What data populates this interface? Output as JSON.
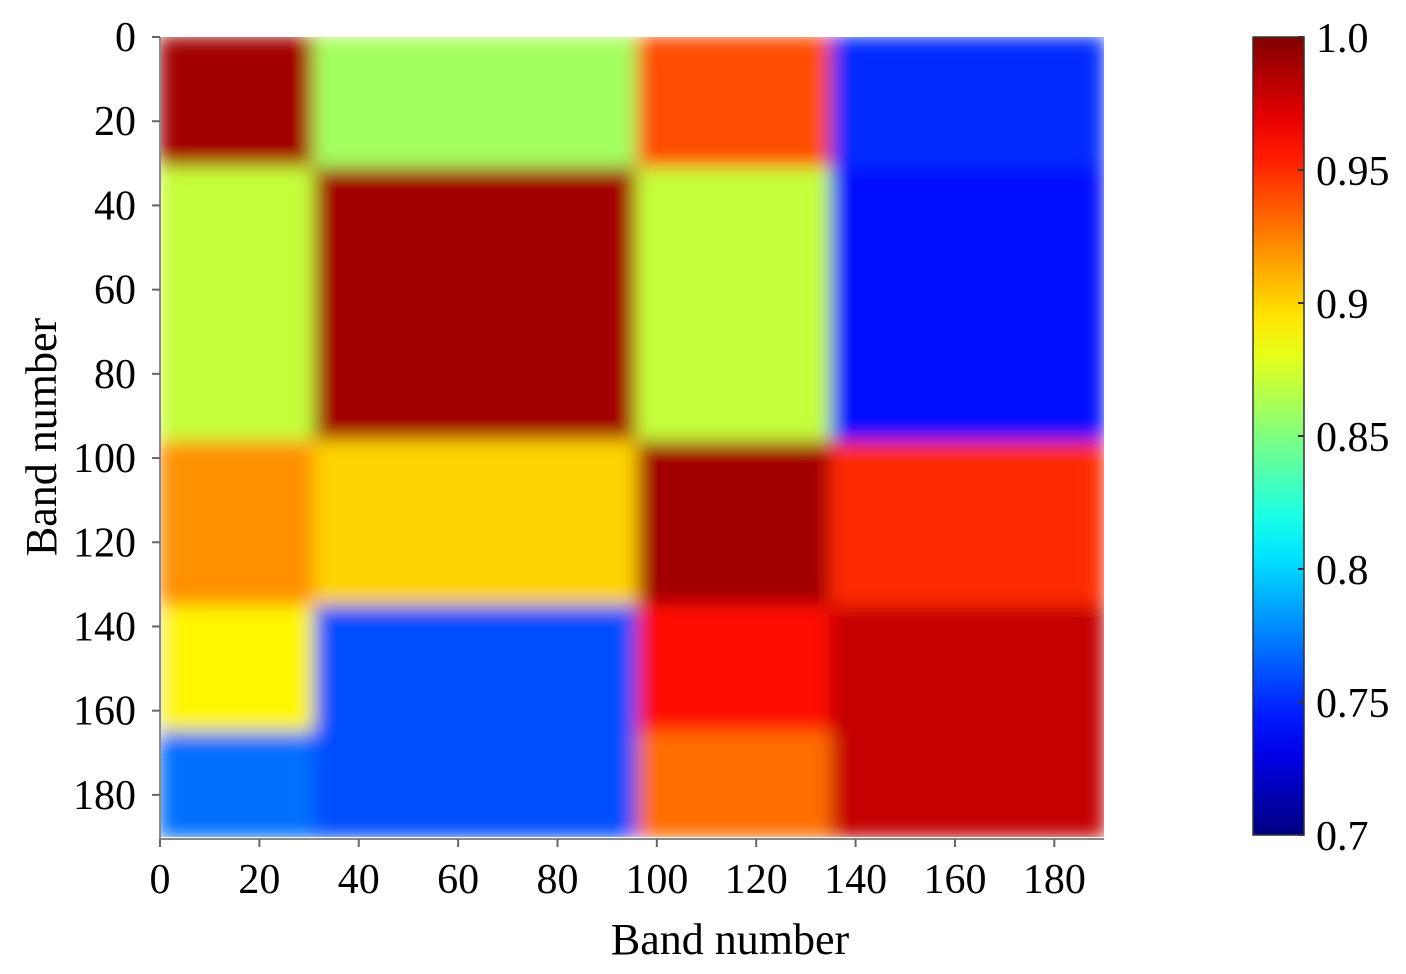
{
  "chart_data": {
    "type": "heatmap",
    "title": "",
    "xlabel": "Band number",
    "ylabel": "Band number",
    "xlim": [
      0,
      190
    ],
    "ylim": [
      0,
      190
    ],
    "x_ticks": [
      0,
      20,
      40,
      60,
      80,
      100,
      120,
      140,
      160,
      180
    ],
    "y_ticks": [
      0,
      20,
      40,
      60,
      80,
      100,
      120,
      140,
      160,
      180
    ],
    "y_axis_direction": "top-to-bottom",
    "colorbar": {
      "range": [
        0.7,
        1.0
      ],
      "ticks": [
        0.7,
        0.75,
        0.8,
        0.85,
        0.9,
        0.95,
        1.0
      ],
      "tick_labels": [
        "0.7",
        "0.75",
        "0.8",
        "0.85",
        "0.9",
        "0.95",
        "1.0"
      ],
      "colormap": "jet",
      "placement": "right"
    },
    "band_groups": [
      {
        "from": 0,
        "to": 31
      },
      {
        "from": 31,
        "to": 96
      },
      {
        "from": 96,
        "to": 135
      },
      {
        "from": 135,
        "to": 190
      }
    ],
    "block_correlation_matrix": [
      [
        0.99,
        0.89,
        0.96,
        0.75
      ],
      [
        0.89,
        0.99,
        0.89,
        0.75
      ],
      [
        0.96,
        0.89,
        0.99,
        0.96
      ],
      [
        0.75,
        0.75,
        0.96,
        0.98
      ]
    ],
    "sub_blocks": [
      {
        "rows": [
          0,
          31
        ],
        "cols": [
          31,
          96
        ],
        "value": 0.86
      },
      {
        "rows": [
          31,
          96
        ],
        "cols": [
          0,
          31
        ],
        "value": 0.87
      },
      {
        "rows": [
          0,
          31
        ],
        "cols": [
          135,
          190
        ],
        "value": 0.75
      },
      {
        "rows": [
          31,
          96
        ],
        "cols": [
          135,
          190
        ],
        "value": 0.74
      },
      {
        "rows": [
          135,
          165
        ],
        "cols": [
          0,
          31
        ],
        "value": 0.89
      },
      {
        "rows": [
          165,
          190
        ],
        "cols": [
          0,
          31
        ],
        "value": 0.77
      },
      {
        "rows": [
          135,
          190
        ],
        "cols": [
          31,
          96
        ],
        "value": 0.76
      },
      {
        "rows": [
          96,
          135
        ],
        "cols": [
          0,
          31
        ],
        "value": 0.92
      },
      {
        "rows": [
          96,
          135
        ],
        "cols": [
          31,
          96
        ],
        "value": 0.9
      },
      {
        "rows": [
          0,
          31
        ],
        "cols": [
          96,
          135
        ],
        "value": 0.94
      },
      {
        "rows": [
          31,
          96
        ],
        "cols": [
          96,
          135
        ],
        "value": 0.87
      },
      {
        "rows": [
          96,
          135
        ],
        "cols": [
          135,
          190
        ],
        "value": 0.95
      },
      {
        "rows": [
          165,
          190
        ],
        "cols": [
          96,
          135
        ],
        "value": 0.93
      }
    ]
  }
}
